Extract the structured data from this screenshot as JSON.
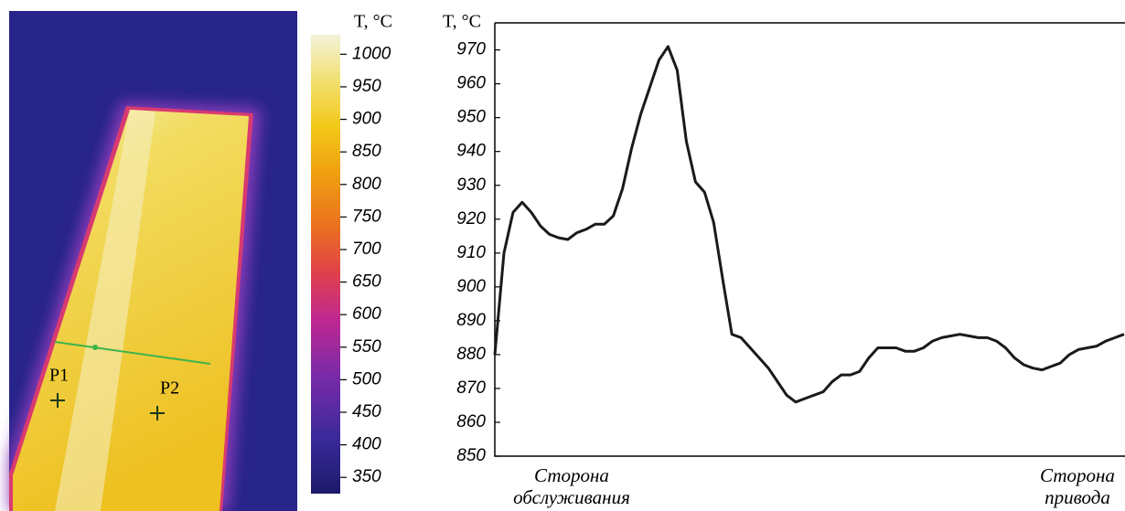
{
  "chart_data": [
    {
      "type": "colorbar",
      "axis_label": "T, °C",
      "markers": [
        "P1",
        "P2"
      ],
      "ylim": [
        325,
        1030
      ],
      "yticks": [
        350,
        400,
        450,
        500,
        550,
        600,
        650,
        700,
        750,
        800,
        850,
        900,
        950,
        1000
      ]
    },
    {
      "type": "line",
      "y_label": "T, °C",
      "annotations": [
        [
          "Сторона",
          "обслуживания"
        ],
        [
          "Сторона",
          "привода"
        ]
      ],
      "ylim": [
        850,
        978
      ],
      "yticks": [
        850,
        860,
        870,
        880,
        890,
        900,
        910,
        920,
        930,
        940,
        950,
        960,
        970
      ],
      "color": "#1a1a1a",
      "values": [
        880,
        910,
        922,
        925,
        922,
        918,
        915.5,
        914.5,
        914,
        916,
        917,
        918.5,
        918.5,
        921,
        929,
        941,
        951,
        959,
        967,
        971,
        964,
        943,
        931,
        928,
        919,
        902,
        886,
        885,
        882,
        879,
        876,
        872,
        868,
        866,
        867,
        868,
        869,
        872,
        874,
        874,
        875,
        879,
        882,
        882,
        882,
        881,
        881,
        882,
        884,
        885,
        885.5,
        886,
        885.5,
        885,
        885,
        884,
        882,
        879,
        877,
        876,
        875.5,
        876.5,
        877.5,
        880,
        881.5,
        882,
        882.5,
        884,
        885,
        886
      ]
    }
  ]
}
